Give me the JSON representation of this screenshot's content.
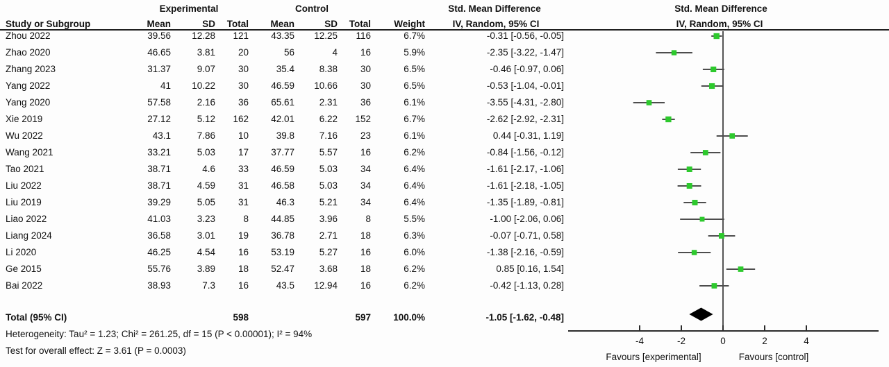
{
  "header": {
    "group_experimental": "Experimental",
    "group_control": "Control",
    "smd_text_col": "Std. Mean Difference",
    "smd_plot_col": "Std. Mean Difference",
    "col_study": "Study or Subgroup",
    "col_mean_exp": "Mean",
    "col_sd_exp": "SD",
    "col_total_exp": "Total",
    "col_mean_ctrl": "Mean",
    "col_sd_ctrl": "SD",
    "col_total_ctrl": "Total",
    "col_weight": "Weight",
    "ci_method_text_col": "IV, Random, 95% CI",
    "ci_method_plot_col": "IV, Random, 95% CI"
  },
  "colors": {
    "marker_green": "#2dc92d",
    "ci_line": "#4d4d4d",
    "axis": "#2b2b2b",
    "diamond": "#000000",
    "text": "#111111",
    "background": "#fdfdfd"
  },
  "chart_data": {
    "type": "scatter",
    "subtype": "forest-plot",
    "effect_measure": "Std. Mean Difference, IV, Random, 95% CI",
    "x_ticks": [
      -4,
      -2,
      0,
      2,
      4
    ],
    "xlim": [
      -7.4,
      7.5
    ],
    "favours_left": "Favours [experimental]",
    "favours_right": "Favours [control]",
    "studies": [
      {
        "label": "Zhou 2022",
        "exp_mean": "39.56",
        "exp_sd": "12.28",
        "exp_n": "121",
        "ctrl_mean": "43.35",
        "ctrl_sd": "12.25",
        "ctrl_n": "116",
        "weight": "6.7%",
        "smd_ci": "-0.31 [-0.56, -0.05]"
      },
      {
        "label": "Zhao 2020",
        "exp_mean": "46.65",
        "exp_sd": "3.81",
        "exp_n": "20",
        "ctrl_mean": "56",
        "ctrl_sd": "4",
        "ctrl_n": "16",
        "weight": "5.9%",
        "smd_ci": "-2.35 [-3.22, -1.47]"
      },
      {
        "label": "Zhang 2023",
        "exp_mean": "31.37",
        "exp_sd": "9.07",
        "exp_n": "30",
        "ctrl_mean": "35.4",
        "ctrl_sd": "8.38",
        "ctrl_n": "30",
        "weight": "6.5%",
        "smd_ci": "-0.46 [-0.97, 0.06]"
      },
      {
        "label": "Yang 2022",
        "exp_mean": "41",
        "exp_sd": "10.22",
        "exp_n": "30",
        "ctrl_mean": "46.59",
        "ctrl_sd": "10.66",
        "ctrl_n": "30",
        "weight": "6.5%",
        "smd_ci": "-0.53 [-1.04, -0.01]"
      },
      {
        "label": "Yang 2020",
        "exp_mean": "57.58",
        "exp_sd": "2.16",
        "exp_n": "36",
        "ctrl_mean": "65.61",
        "ctrl_sd": "2.31",
        "ctrl_n": "36",
        "weight": "6.1%",
        "smd_ci": "-3.55 [-4.31, -2.80]"
      },
      {
        "label": "Xie 2019",
        "exp_mean": "27.12",
        "exp_sd": "5.12",
        "exp_n": "162",
        "ctrl_mean": "42.01",
        "ctrl_sd": "6.22",
        "ctrl_n": "152",
        "weight": "6.7%",
        "smd_ci": "-2.62 [-2.92, -2.31]"
      },
      {
        "label": "Wu 2022",
        "exp_mean": "43.1",
        "exp_sd": "7.86",
        "exp_n": "10",
        "ctrl_mean": "39.8",
        "ctrl_sd": "7.16",
        "ctrl_n": "23",
        "weight": "6.1%",
        "smd_ci": "0.44 [-0.31, 1.19]"
      },
      {
        "label": "Wang 2021",
        "exp_mean": "33.21",
        "exp_sd": "5.03",
        "exp_n": "17",
        "ctrl_mean": "37.77",
        "ctrl_sd": "5.57",
        "ctrl_n": "16",
        "weight": "6.2%",
        "smd_ci": "-0.84 [-1.56, -0.12]"
      },
      {
        "label": "Tao 2021",
        "exp_mean": "38.71",
        "exp_sd": "4.6",
        "exp_n": "33",
        "ctrl_mean": "46.59",
        "ctrl_sd": "5.03",
        "ctrl_n": "34",
        "weight": "6.4%",
        "smd_ci": "-1.61 [-2.17, -1.06]"
      },
      {
        "label": "Liu 2022",
        "exp_mean": "38.71",
        "exp_sd": "4.59",
        "exp_n": "31",
        "ctrl_mean": "46.58",
        "ctrl_sd": "5.03",
        "ctrl_n": "34",
        "weight": "6.4%",
        "smd_ci": "-1.61 [-2.18, -1.05]"
      },
      {
        "label": "Liu 2019",
        "exp_mean": "39.29",
        "exp_sd": "5.05",
        "exp_n": "31",
        "ctrl_mean": "46.3",
        "ctrl_sd": "5.21",
        "ctrl_n": "34",
        "weight": "6.4%",
        "smd_ci": "-1.35 [-1.89, -0.81]"
      },
      {
        "label": "Liao 2022",
        "exp_mean": "41.03",
        "exp_sd": "3.23",
        "exp_n": "8",
        "ctrl_mean": "44.85",
        "ctrl_sd": "3.96",
        "ctrl_n": "8",
        "weight": "5.5%",
        "smd_ci": "-1.00 [-2.06, 0.06]"
      },
      {
        "label": "Liang 2024",
        "exp_mean": "36.58",
        "exp_sd": "3.01",
        "exp_n": "19",
        "ctrl_mean": "36.78",
        "ctrl_sd": "2.71",
        "ctrl_n": "18",
        "weight": "6.3%",
        "smd_ci": "-0.07 [-0.71, 0.58]"
      },
      {
        "label": "Li 2020",
        "exp_mean": "46.25",
        "exp_sd": "4.54",
        "exp_n": "16",
        "ctrl_mean": "53.19",
        "ctrl_sd": "5.27",
        "ctrl_n": "16",
        "weight": "6.0%",
        "smd_ci": "-1.38 [-2.16, -0.59]"
      },
      {
        "label": "Ge 2015",
        "exp_mean": "55.76",
        "exp_sd": "3.89",
        "exp_n": "18",
        "ctrl_mean": "52.47",
        "ctrl_sd": "3.68",
        "ctrl_n": "18",
        "weight": "6.2%",
        "smd_ci": "0.85 [0.16, 1.54]"
      },
      {
        "label": "Bai 2022",
        "exp_mean": "38.93",
        "exp_sd": "7.3",
        "exp_n": "16",
        "ctrl_mean": "43.5",
        "ctrl_sd": "12.94",
        "ctrl_n": "16",
        "weight": "6.2%",
        "smd_ci": "-0.42 [-1.13, 0.28]"
      }
    ],
    "total": {
      "label": "Total (95% CI)",
      "exp_n": "598",
      "ctrl_n": "597",
      "weight": "100.0%",
      "smd_ci": "-1.05 [-1.62, -0.48]"
    },
    "heterogeneity": "Heterogeneity: Tau² = 1.23; Chi² = 261.25, df = 15 (P < 0.00001); I² = 94%",
    "overall_effect": "Test for overall effect: Z = 3.61 (P = 0.0003)"
  }
}
